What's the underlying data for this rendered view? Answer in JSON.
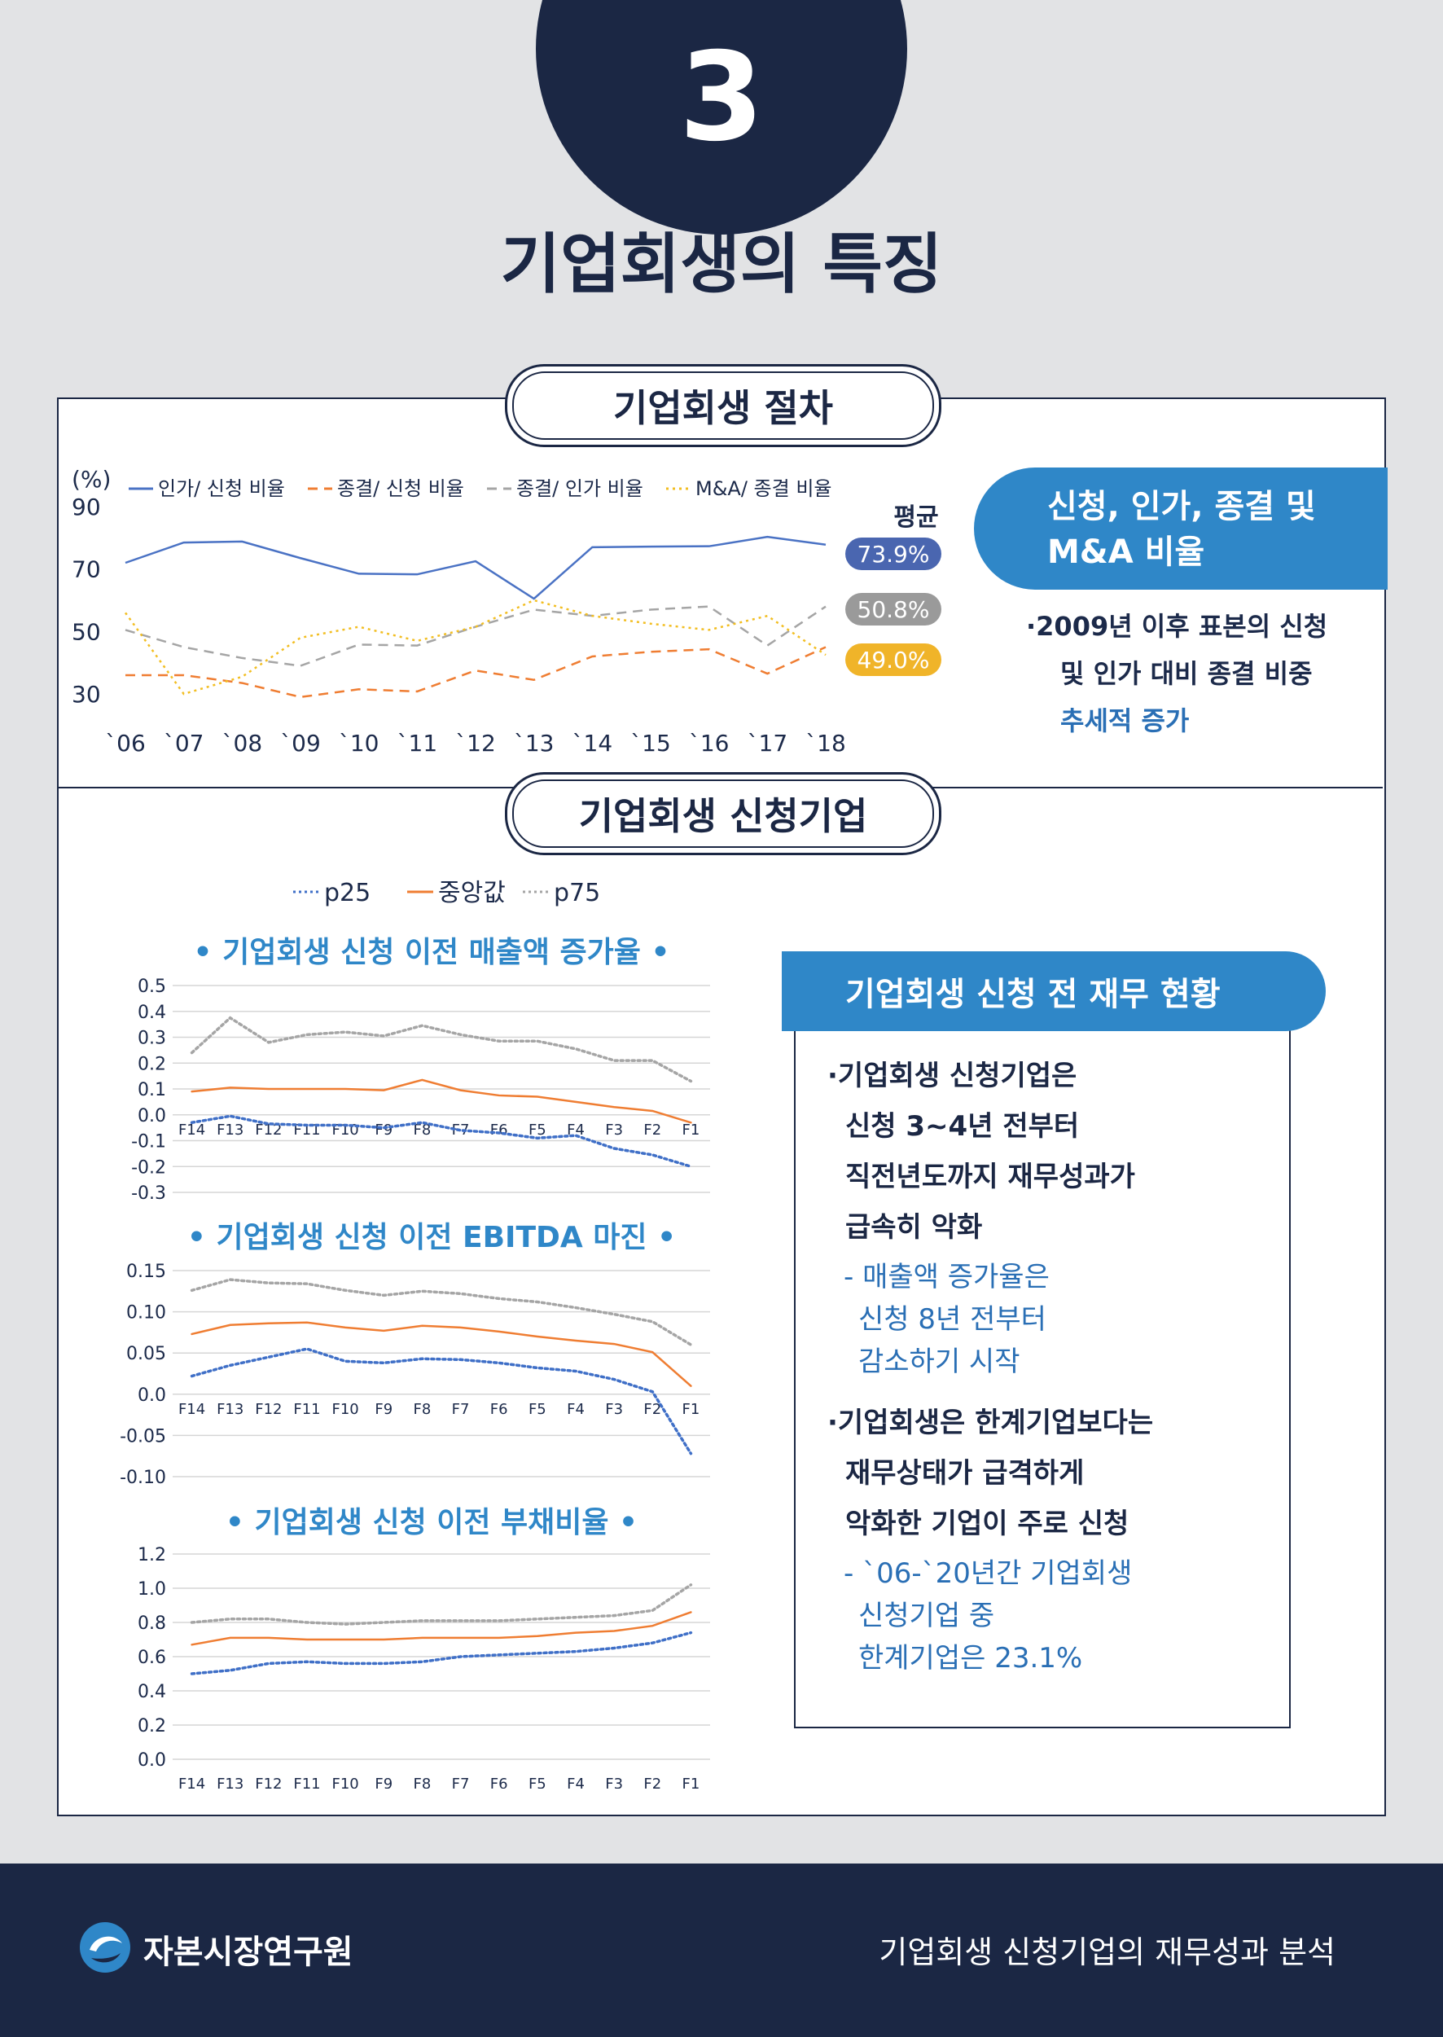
{
  "header": {
    "number": "3",
    "title": "기업회생의 특징"
  },
  "section1": {
    "title": "기업회생 절차",
    "unit": "(%)",
    "avg_label": "평균",
    "averages": [
      {
        "value": "73.9%",
        "color": "#4a66b0"
      },
      {
        "value": "50.8%",
        "color": "#9a9a9a"
      },
      {
        "value": "49.0%",
        "color": "#f0b429"
      }
    ],
    "box_title_line1": "신청, 인가, 종결 및",
    "box_title_line2": "M&A 비율",
    "bullet_line1": "2009년 이후 표본의 신청",
    "bullet_line2": "및 인가 대비 종결 비중",
    "bullet_line3": "추세적 증가"
  },
  "section2": {
    "title": "기업회생 신청기업",
    "legend": [
      "p25",
      "중앙값",
      "p75"
    ],
    "box_title": "기업회생 신청 전 재무 현황",
    "bullet1_lines": [
      "기업회생 신청기업은",
      "신청 3~4년 전부터",
      "직전년도까지 재무성과가",
      "급속히 악화"
    ],
    "sub1_lines": [
      "- 매출액 증가율은",
      "신청 8년 전부터",
      "감소하기 시작"
    ],
    "bullet2_lines": [
      "기업회생은 한계기업보다는",
      "재무상태가 급격하게",
      "악화한 기업이 주로 신청"
    ],
    "sub2_lines": [
      "- `06-`20년간 기업회생",
      "신청기업 중",
      "한계기업은 23.1%"
    ]
  },
  "footer": {
    "org": "자본시장연구원",
    "report": "기업회생 신청기업의 재무성과 분석"
  },
  "chart_data": [
    {
      "type": "line",
      "title": "",
      "ylabel": "(%)",
      "x": [
        "`06",
        "`07",
        "`08",
        "`09",
        "`10",
        "`11",
        "`12",
        "`13",
        "`14",
        "`15",
        "`16",
        "`17",
        "`18"
      ],
      "ylim": [
        30,
        90
      ],
      "yticks": [
        30,
        50,
        70,
        90
      ],
      "grid": false,
      "legend": "top",
      "series": [
        {
          "name": "인가/ 신청 비율",
          "color": "#4a72c4",
          "dash": "solid",
          "values": [
            72,
            78.5,
            78.8,
            73.5,
            68.5,
            68.3,
            72.5,
            60.5,
            77,
            77.2,
            77.3,
            80.3,
            77.8
          ]
        },
        {
          "name": "종결/ 신청 비율",
          "color": "#ef7d32",
          "dash": "dashed",
          "values": [
            36,
            36,
            33.5,
            29,
            31.5,
            30.8,
            37.5,
            34.5,
            42,
            43.5,
            44.3,
            36.5,
            45
          ]
        },
        {
          "name": "종결/ 인가 비율",
          "color": "#a5a5a5",
          "dash": "dashed",
          "values": [
            50.5,
            45,
            41.5,
            39,
            45.8,
            45.5,
            51.5,
            57,
            55,
            57,
            58,
            45.5,
            58
          ]
        },
        {
          "name": "M&A/ 종결 비율",
          "color": "#f2be22",
          "dash": "dotted",
          "values": [
            56,
            30,
            35.5,
            48,
            51.5,
            47,
            51.5,
            60,
            55,
            52.5,
            50.5,
            55,
            42.5
          ]
        }
      ]
    },
    {
      "type": "line",
      "title": "기업회생 신청 이전 매출액 증가율",
      "x": [
        "F14",
        "F13",
        "F12",
        "F11",
        "F10",
        "F9",
        "F8",
        "F7",
        "F6",
        "F5",
        "F4",
        "F3",
        "F2",
        "F1"
      ],
      "ylim": [
        -0.3,
        0.5
      ],
      "yticks": [
        -0.3,
        -0.2,
        -0.1,
        0.0,
        0.1,
        0.2,
        0.3,
        0.4,
        0.5
      ],
      "ytick_labels": [
        "-0.3",
        "-0.2",
        "-0.1",
        "0.0",
        "0.1",
        "0.2",
        "0.3",
        "0.4",
        "0.5"
      ],
      "grid": true,
      "series": [
        {
          "name": "p25",
          "color": "#3f6fc7",
          "dash": "dotted",
          "values": [
            -0.03,
            -0.005,
            -0.035,
            -0.04,
            -0.04,
            -0.05,
            -0.03,
            -0.06,
            -0.07,
            -0.09,
            -0.08,
            -0.13,
            -0.155,
            -0.2
          ]
        },
        {
          "name": "중앙값",
          "color": "#ef7d32",
          "dash": "solid",
          "values": [
            0.09,
            0.105,
            0.1,
            0.1,
            0.1,
            0.095,
            0.135,
            0.095,
            0.075,
            0.07,
            0.05,
            0.03,
            0.015,
            -0.03
          ]
        },
        {
          "name": "p75",
          "color": "#a5a5a5",
          "dash": "dotted",
          "values": [
            0.24,
            0.375,
            0.28,
            0.31,
            0.32,
            0.305,
            0.345,
            0.31,
            0.285,
            0.285,
            0.255,
            0.21,
            0.21,
            0.13
          ]
        }
      ]
    },
    {
      "type": "line",
      "title": "기업회생 신청 이전 EBITDA 마진",
      "x": [
        "F14",
        "F13",
        "F12",
        "F11",
        "F10",
        "F9",
        "F8",
        "F7",
        "F6",
        "F5",
        "F4",
        "F3",
        "F2",
        "F1"
      ],
      "ylim": [
        -0.1,
        0.15
      ],
      "yticks": [
        -0.1,
        -0.05,
        0.0,
        0.05,
        0.1,
        0.15
      ],
      "ytick_labels": [
        "-0.10",
        "-0.05",
        "0.0",
        "0.05",
        "0.10",
        "0.15"
      ],
      "grid": true,
      "series": [
        {
          "name": "p25",
          "color": "#3f6fc7",
          "dash": "dotted",
          "values": [
            0.022,
            0.035,
            0.045,
            0.055,
            0.04,
            0.038,
            0.043,
            0.042,
            0.038,
            0.032,
            0.028,
            0.018,
            0.003,
            -0.072
          ]
        },
        {
          "name": "중앙값",
          "color": "#ef7d32",
          "dash": "solid",
          "values": [
            0.073,
            0.084,
            0.086,
            0.087,
            0.081,
            0.077,
            0.083,
            0.081,
            0.076,
            0.07,
            0.065,
            0.061,
            0.051,
            0.01
          ]
        },
        {
          "name": "p75",
          "color": "#a5a5a5",
          "dash": "dotted",
          "values": [
            0.126,
            0.139,
            0.135,
            0.134,
            0.126,
            0.12,
            0.125,
            0.122,
            0.116,
            0.112,
            0.105,
            0.097,
            0.088,
            0.06
          ]
        }
      ]
    },
    {
      "type": "line",
      "title": "기업회생 신청 이전 부채비율",
      "x": [
        "F14",
        "F13",
        "F12",
        "F11",
        "F10",
        "F9",
        "F8",
        "F7",
        "F6",
        "F5",
        "F4",
        "F3",
        "F2",
        "F1"
      ],
      "ylim": [
        0,
        1.2
      ],
      "yticks": [
        0,
        0.2,
        0.4,
        0.6,
        0.8,
        1.0,
        1.2
      ],
      "ytick_labels": [
        "0.0",
        "0.2",
        "0.4",
        "0.6",
        "0.8",
        "1.0",
        "1.2"
      ],
      "grid": true,
      "series": [
        {
          "name": "p25",
          "color": "#3f6fc7",
          "dash": "dotted",
          "values": [
            0.5,
            0.52,
            0.56,
            0.57,
            0.56,
            0.56,
            0.57,
            0.6,
            0.61,
            0.62,
            0.63,
            0.65,
            0.68,
            0.74
          ]
        },
        {
          "name": "중앙값",
          "color": "#ef7d32",
          "dash": "solid",
          "values": [
            0.67,
            0.71,
            0.71,
            0.7,
            0.7,
            0.7,
            0.71,
            0.71,
            0.71,
            0.72,
            0.74,
            0.75,
            0.78,
            0.86
          ]
        },
        {
          "name": "p75",
          "color": "#a5a5a5",
          "dash": "dotted",
          "values": [
            0.8,
            0.82,
            0.82,
            0.8,
            0.79,
            0.8,
            0.81,
            0.81,
            0.81,
            0.82,
            0.83,
            0.84,
            0.87,
            1.02
          ]
        }
      ]
    }
  ]
}
